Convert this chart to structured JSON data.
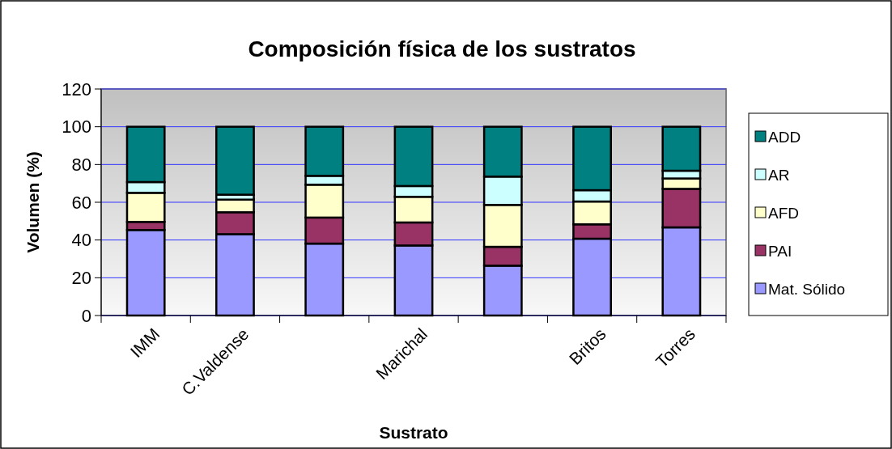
{
  "chart_data": {
    "type": "bar",
    "title": "Composición física de los sustratos",
    "xlabel": "Sustrato",
    "ylabel": "Volumen (%)",
    "categories": [
      "IMM",
      "C.Valdense",
      null,
      "Marichal",
      null,
      "Britos",
      "Torres"
    ],
    "stacked": true,
    "ylim": [
      0,
      120
    ],
    "yticks": [
      0,
      20,
      40,
      60,
      80,
      100,
      120
    ],
    "grid": "y",
    "legend": "right",
    "series": [
      {
        "name": "Mat. Sólido",
        "color": "#9999ff",
        "values": [
          45.3,
          43.1,
          38.1,
          37.1,
          26.4,
          40.7,
          46.7
        ]
      },
      {
        "name": "PAI",
        "color": "#993366",
        "values": [
          4.3,
          11.6,
          13.8,
          12.2,
          10,
          7.6,
          20.4
        ]
      },
      {
        "name": "AFD",
        "color": "#ffffcc",
        "values": [
          15.4,
          6.7,
          17.4,
          13.6,
          22.2,
          12.1,
          5.5
        ]
      },
      {
        "name": "AR",
        "color": "#ccffff",
        "values": [
          5.7,
          2.6,
          4.7,
          5.7,
          15,
          6,
          4.1
        ]
      },
      {
        "name": "ADD",
        "color": "#008080",
        "values": [
          29.3,
          36,
          26,
          31.4,
          26.4,
          33.6,
          23.3
        ]
      }
    ]
  }
}
